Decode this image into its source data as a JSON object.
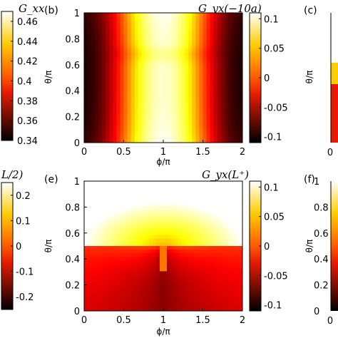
{
  "chart_data": [
    {
      "type": "heatmap",
      "panel": "",
      "title": "G_xx",
      "colorbar_ticks": [
        "0.46",
        "0.44",
        "0.42",
        "0.4",
        "0.38",
        "0.36",
        "0.34"
      ],
      "colorbar_range": [
        0.34,
        0.47
      ]
    },
    {
      "type": "heatmap",
      "panel": "(b)",
      "title": "G_yx(−10a)",
      "xlabel": "ϕ/π",
      "ylabel": "θ/π",
      "xlim": [
        0,
        2
      ],
      "ylim": [
        0,
        1
      ],
      "x_ticks": [
        "0",
        "0.5",
        "1",
        "1.5",
        "2"
      ],
      "y_ticks": [
        "0",
        "0.2",
        "0.4",
        "0.6",
        "0.8",
        "1"
      ],
      "colorbar_ticks": [
        "0.1",
        "0.05",
        "0",
        "-0.05",
        "-0.1"
      ],
      "colorbar_range": [
        -0.11,
        0.11
      ],
      "pattern": "cos_phi_stripes"
    },
    {
      "type": "heatmap",
      "panel": "(c)",
      "ylabel": "θ/π",
      "x_ticks": [
        "0"
      ],
      "pattern": "partial_edge_right"
    },
    {
      "type": "heatmap",
      "panel": "",
      "title": "L/2)",
      "colorbar_ticks": [
        "0.2",
        "0.1",
        "0",
        "-0.1",
        "-0.2"
      ],
      "colorbar_range": [
        -0.25,
        0.25
      ]
    },
    {
      "type": "heatmap",
      "panel": "(e)",
      "title": "G_yx(L⁺)",
      "xlabel": "ϕ/π",
      "ylabel": "θ/π",
      "xlim": [
        0,
        2
      ],
      "ylim": [
        0,
        1
      ],
      "x_ticks": [
        "0",
        "0.5",
        "1",
        "1.5",
        "2"
      ],
      "y_ticks": [
        "0",
        "0.2",
        "0.4",
        "0.6",
        "0.8",
        "1"
      ],
      "colorbar_ticks": [
        "0.1",
        "0.05",
        "0",
        "-0.05",
        "-0.1"
      ],
      "colorbar_range": [
        -0.11,
        0.11
      ],
      "pattern": "vortex_at_phi1_theta05"
    },
    {
      "type": "heatmap",
      "panel": "(f)",
      "ylabel": "θ/π",
      "x_ticks": [
        "0"
      ],
      "colorbar_ticks": [
        "1",
        "0.8",
        "0.6",
        "0.4",
        "0.2",
        "0"
      ],
      "colorbar_range": [
        0,
        1
      ],
      "pattern": "partial_edge_right"
    }
  ],
  "colormap": "hot",
  "colors": {
    "frame": "#000000",
    "background": "#ffffff"
  }
}
